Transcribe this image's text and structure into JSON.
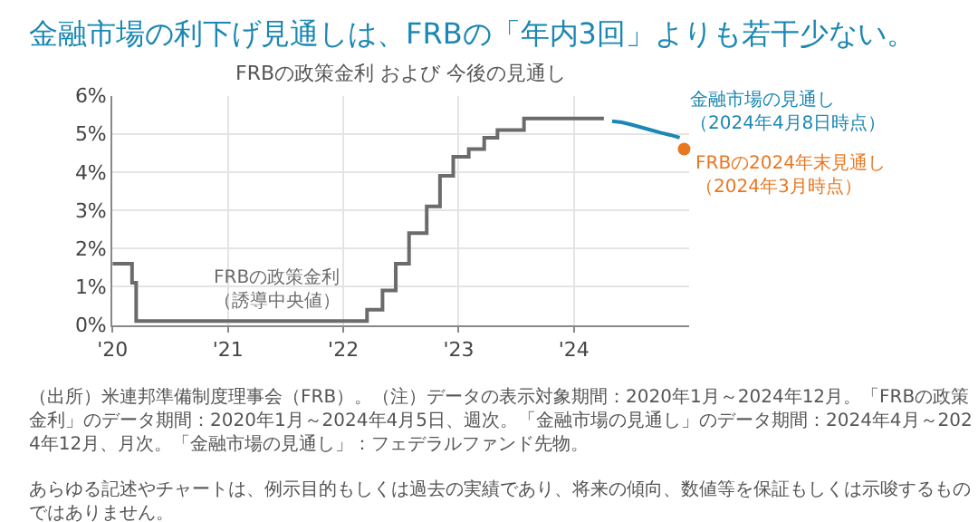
{
  "chart_data": {
    "type": "step",
    "title": "金融市場の利下げ見通しは、FRBの「年内3回」よりも若干少ない。",
    "subtitle": "FRBの政策金利 および 今後の見通し",
    "series": [
      {
        "name": "FRBの政策金利（誘導中央値）",
        "color": "#6b6b6b",
        "x": [
          "2020-01-01",
          "2020-03-03",
          "2020-03-16",
          "2022-03-17",
          "2022-05-05",
          "2022-06-16",
          "2022-07-28",
          "2022-09-22",
          "2022-11-03",
          "2022-12-15",
          "2023-02-02",
          "2023-03-23",
          "2023-05-04",
          "2023-07-27",
          "2024-04-05"
        ],
        "values": [
          1.6,
          1.1,
          0.1,
          0.4,
          0.9,
          1.6,
          2.4,
          3.1,
          3.9,
          4.4,
          4.6,
          4.9,
          5.1,
          5.4,
          5.4
        ]
      },
      {
        "name": "金融市場の見通し（2024年4月8日時点）",
        "type": "line",
        "color": "#1b87b3",
        "x": [
          "2024-05-01",
          "2024-06-01",
          "2024-07-01",
          "2024-08-01",
          "2024-09-01",
          "2024-10-01",
          "2024-11-01",
          "2024-12-01"
        ],
        "values": [
          5.33,
          5.3,
          5.24,
          5.17,
          5.1,
          5.03,
          4.97,
          4.9
        ]
      },
      {
        "name": "FRBの2024年末見通し（2024年3月時点）",
        "type": "scatter",
        "marker": "circle",
        "color": "#e87722",
        "x": [
          "2024-12-15"
        ],
        "values": [
          4.6
        ]
      }
    ],
    "xlim": [
      "2020-01-01",
      "2025-01-01"
    ],
    "xticks": [
      {
        "value": "2020-01-01",
        "label": "'20"
      },
      {
        "value": "2021-01-01",
        "label": "'21"
      },
      {
        "value": "2022-01-01",
        "label": "'22"
      },
      {
        "value": "2023-01-01",
        "label": "'23"
      },
      {
        "value": "2024-01-01",
        "label": "'24"
      }
    ],
    "ylim": [
      0,
      6
    ],
    "yticks": [
      {
        "value": 0,
        "label": "0%"
      },
      {
        "value": 1,
        "label": "1%"
      },
      {
        "value": 2,
        "label": "2%"
      },
      {
        "value": 3,
        "label": "3%"
      },
      {
        "value": 4,
        "label": "4%"
      },
      {
        "value": 5,
        "label": "5%"
      },
      {
        "value": 6,
        "label": "6%"
      }
    ],
    "grid": true,
    "legend": false,
    "annotations": [
      "（出所）米連邦準備制度理事会（FRB）。（注）データの表示対象期間：2020年1月～2024年12月。「FRBの政策金利」のデータ期間：2020年1月～2024年4月5日、週次。「金融市場の見通し」のデータ期間：2024年4月～2024年12月、月次。「金融市場の見通し」：フェデラルファンド先物。",
      "あらゆる記述やチャートは、例示目的もしくは過去の実績であり、将来の傾向、数値等を保証もしくは示唆するものではありません。"
    ]
  }
}
